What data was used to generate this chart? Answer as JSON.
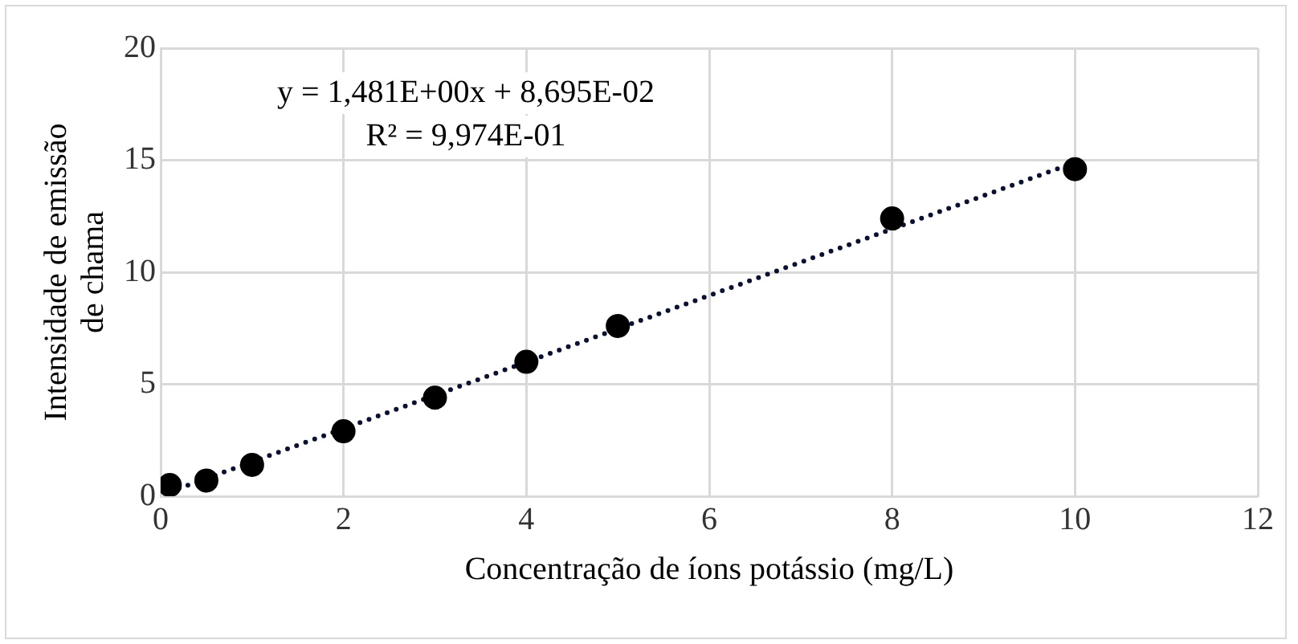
{
  "chart_data": {
    "type": "scatter",
    "xlabel": "Concentração de íons potássio (mg/L)",
    "ylabel": "Intensidade de emissão de chama",
    "x": [
      0.1,
      0.5,
      1,
      2,
      3,
      4,
      5,
      8,
      10
    ],
    "series": [
      {
        "type": "scatter",
        "color": "#000000",
        "marker": "circle",
        "values": [
          0.5,
          0.7,
          1.4,
          2.9,
          4.4,
          6.0,
          7.6,
          12.4,
          14.6
        ]
      },
      {
        "type": "line",
        "color": "#0a1030",
        "x": [
          0.1,
          10
        ],
        "values": [
          0.2,
          14.9
        ],
        "marker": "none",
        "line_style": "dotted"
      }
    ],
    "xlim": [
      0,
      12
    ],
    "xticks": [
      0,
      2,
      4,
      6,
      8,
      10,
      12
    ],
    "ylim": [
      0,
      20
    ],
    "yticks": [
      0,
      5,
      10,
      15,
      20
    ],
    "grid": true,
    "legend": false,
    "annotations": [
      "y = 1,481E+00x + 8,695E-02",
      "R² = 9,974E-01"
    ]
  }
}
